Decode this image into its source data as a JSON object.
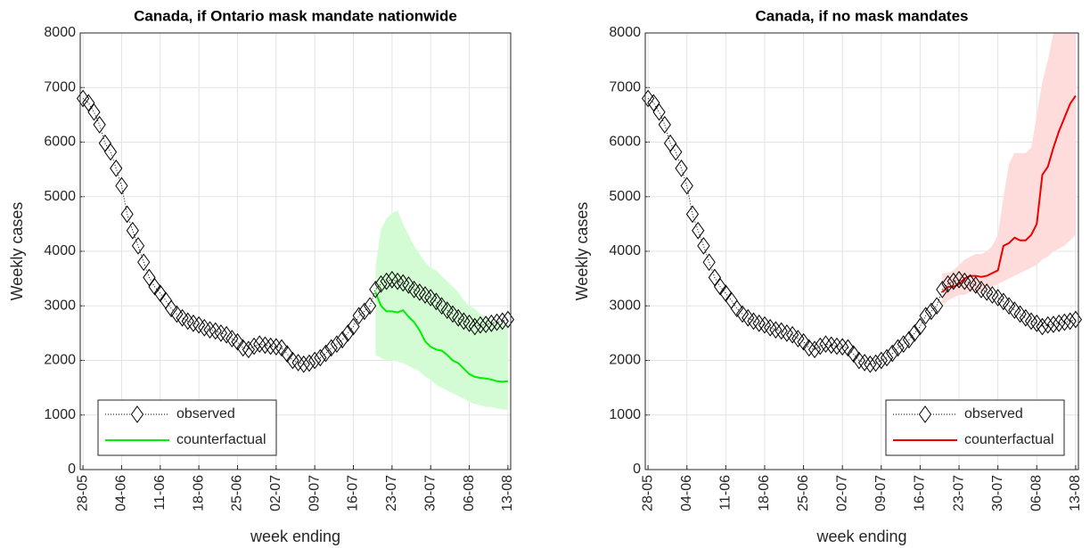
{
  "chart_data": [
    {
      "type": "line",
      "title": "Canada, if Ontario mask mandate nationwide",
      "xlabel": "week ending",
      "ylabel": "Weekly cases",
      "x": [
        0,
        1,
        2,
        3,
        4,
        5,
        6,
        7,
        8,
        9,
        10,
        11,
        12,
        13,
        14,
        15,
        16,
        17,
        18,
        19,
        20,
        21,
        22,
        23,
        24,
        25,
        26,
        27,
        28,
        29,
        30,
        31,
        32,
        33,
        34,
        35,
        36,
        37,
        38,
        39,
        40,
        41,
        42,
        43,
        44,
        45,
        46,
        47,
        48,
        49,
        50,
        51,
        52,
        53,
        54,
        55,
        56,
        57,
        58,
        59,
        60,
        61,
        62,
        63,
        64,
        65,
        66,
        67,
        68,
        69,
        70,
        71,
        72,
        73,
        74,
        75,
        76,
        77
      ],
      "xlim": [
        -0.5,
        77.5
      ],
      "xticks": [
        {
          "value": 0,
          "label": "28-05"
        },
        {
          "value": 7,
          "label": "04-06"
        },
        {
          "value": 14,
          "label": "11-06"
        },
        {
          "value": 21,
          "label": "18-06"
        },
        {
          "value": 28,
          "label": "25-06"
        },
        {
          "value": 35,
          "label": "02-07"
        },
        {
          "value": 42,
          "label": "09-07"
        },
        {
          "value": 49,
          "label": "16-07"
        },
        {
          "value": 56,
          "label": "23-07"
        },
        {
          "value": 63,
          "label": "30-07"
        },
        {
          "value": 70,
          "label": "06-08"
        },
        {
          "value": 77,
          "label": "13-08"
        }
      ],
      "ylim": [
        0,
        8000
      ],
      "yticks": [
        0,
        1000,
        2000,
        3000,
        4000,
        5000,
        6000,
        7000,
        8000
      ],
      "grid": true,
      "legend": "lower left",
      "series": [
        {
          "name": "observed",
          "color": "#000000",
          "marker": "diamond",
          "linestyle": "dotted",
          "values": [
            6800,
            6720,
            6550,
            6320,
            5980,
            5820,
            5520,
            5200,
            4680,
            4380,
            4100,
            3800,
            3520,
            3350,
            3230,
            3100,
            2950,
            2850,
            2780,
            2720,
            2680,
            2650,
            2600,
            2560,
            2540,
            2500,
            2470,
            2400,
            2340,
            2230,
            2200,
            2260,
            2300,
            2280,
            2260,
            2250,
            2230,
            2120,
            2000,
            1960,
            1930,
            1950,
            2000,
            2050,
            2130,
            2230,
            2300,
            2380,
            2500,
            2620,
            2820,
            2900,
            3000,
            3300,
            3400,
            3450,
            3480,
            3450,
            3420,
            3380,
            3300,
            3250,
            3200,
            3150,
            3080,
            3000,
            2920,
            2850,
            2780,
            2720,
            2680,
            2620,
            2650,
            2660,
            2680,
            2700,
            2720,
            2750
          ]
        },
        {
          "name": "counterfactual",
          "color": "#00ee00",
          "linestyle": "solid",
          "x": [
            53,
            54,
            55,
            56,
            57,
            58,
            59,
            60,
            61,
            62,
            63,
            64,
            65,
            66,
            67,
            68,
            69,
            70,
            71,
            72,
            73,
            74,
            75,
            76,
            77
          ],
          "values": [
            3250,
            3000,
            2900,
            2900,
            2880,
            2920,
            2800,
            2700,
            2550,
            2350,
            2250,
            2200,
            2180,
            2100,
            2000,
            1950,
            1850,
            1750,
            1700,
            1680,
            1670,
            1650,
            1620,
            1610,
            1620
          ],
          "band": {
            "color": "#d4fcd4",
            "upper": [
              3700,
              4400,
              4600,
              4700,
              4750,
              4500,
              4300,
              4100,
              3950,
              3800,
              3700,
              3650,
              3550,
              3450,
              3350,
              3250,
              3100,
              3000,
              2950,
              2850,
              2800,
              2750,
              2700,
              2680,
              2650
            ],
            "lower": [
              2100,
              2050,
              2000,
              2000,
              1980,
              1950,
              1900,
              1850,
              1800,
              1700,
              1650,
              1550,
              1500,
              1450,
              1400,
              1350,
              1300,
              1250,
              1200,
              1180,
              1150,
              1150,
              1120,
              1100,
              1100
            ]
          }
        }
      ]
    },
    {
      "type": "line",
      "title": "Canada, if no mask mandates",
      "xlabel": "week ending",
      "ylabel": "Weekly cases",
      "x": [
        0,
        1,
        2,
        3,
        4,
        5,
        6,
        7,
        8,
        9,
        10,
        11,
        12,
        13,
        14,
        15,
        16,
        17,
        18,
        19,
        20,
        21,
        22,
        23,
        24,
        25,
        26,
        27,
        28,
        29,
        30,
        31,
        32,
        33,
        34,
        35,
        36,
        37,
        38,
        39,
        40,
        41,
        42,
        43,
        44,
        45,
        46,
        47,
        48,
        49,
        50,
        51,
        52,
        53,
        54,
        55,
        56,
        57,
        58,
        59,
        60,
        61,
        62,
        63,
        64,
        65,
        66,
        67,
        68,
        69,
        70,
        71,
        72,
        73,
        74,
        75,
        76,
        77
      ],
      "xlim": [
        -0.5,
        77.5
      ],
      "xticks": [
        {
          "value": 0,
          "label": "28-05"
        },
        {
          "value": 7,
          "label": "04-06"
        },
        {
          "value": 14,
          "label": "11-06"
        },
        {
          "value": 21,
          "label": "18-06"
        },
        {
          "value": 28,
          "label": "25-06"
        },
        {
          "value": 35,
          "label": "02-07"
        },
        {
          "value": 42,
          "label": "09-07"
        },
        {
          "value": 49,
          "label": "16-07"
        },
        {
          "value": 56,
          "label": "23-07"
        },
        {
          "value": 63,
          "label": "30-07"
        },
        {
          "value": 70,
          "label": "06-08"
        },
        {
          "value": 77,
          "label": "13-08"
        }
      ],
      "ylim": [
        0,
        8000
      ],
      "yticks": [
        0,
        1000,
        2000,
        3000,
        4000,
        5000,
        6000,
        7000,
        8000
      ],
      "grid": true,
      "legend": "lower right",
      "series": [
        {
          "name": "observed",
          "color": "#000000",
          "marker": "diamond",
          "linestyle": "dotted",
          "values": [
            6800,
            6720,
            6550,
            6320,
            5980,
            5820,
            5520,
            5200,
            4680,
            4380,
            4100,
            3800,
            3520,
            3350,
            3230,
            3100,
            2950,
            2850,
            2780,
            2720,
            2680,
            2650,
            2600,
            2560,
            2540,
            2500,
            2470,
            2400,
            2340,
            2230,
            2200,
            2260,
            2300,
            2280,
            2260,
            2250,
            2230,
            2120,
            2000,
            1960,
            1930,
            1950,
            2000,
            2050,
            2130,
            2230,
            2300,
            2380,
            2500,
            2620,
            2820,
            2900,
            3000,
            3300,
            3400,
            3450,
            3480,
            3450,
            3420,
            3380,
            3300,
            3250,
            3200,
            3150,
            3080,
            3000,
            2920,
            2850,
            2780,
            2720,
            2680,
            2620,
            2650,
            2660,
            2680,
            2700,
            2720,
            2750
          ]
        },
        {
          "name": "counterfactual",
          "color": "#ee0000",
          "linestyle": "solid",
          "x": [
            53,
            54,
            55,
            56,
            57,
            58,
            59,
            60,
            61,
            62,
            63,
            64,
            65,
            66,
            67,
            68,
            69,
            70,
            71,
            72,
            73,
            74,
            75,
            76,
            77
          ],
          "values": [
            3250,
            3350,
            3350,
            3400,
            3500,
            3550,
            3550,
            3530,
            3550,
            3600,
            3650,
            4100,
            4150,
            4250,
            4200,
            4200,
            4300,
            4500,
            5400,
            5550,
            5900,
            6200,
            6450,
            6700,
            6850
          ],
          "band": {
            "color": "#ffdcdc",
            "upper": [
              3600,
              3600,
              3650,
              3750,
              3850,
              3900,
              3950,
              3950,
              4000,
              4100,
              4300,
              5000,
              5600,
              5800,
              5800,
              5800,
              5900,
              6500,
              7100,
              7500,
              8000,
              8300,
              8500,
              8700,
              8900
            ],
            "lower": [
              3000,
              3100,
              3150,
              3200,
              3200,
              3250,
              3250,
              3250,
              3300,
              3350,
              3400,
              3450,
              3500,
              3550,
              3600,
              3650,
              3700,
              3750,
              3850,
              3900,
              4000,
              4050,
              4100,
              4200,
              4300
            ]
          }
        }
      ]
    }
  ]
}
